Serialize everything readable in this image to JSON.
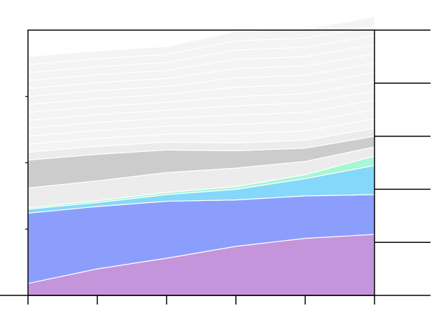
{
  "chart_data": {
    "type": "area",
    "stacked": true,
    "title": "",
    "xlabel": "",
    "ylabel": "",
    "x": [
      0,
      1,
      2,
      3,
      4,
      5
    ],
    "xlim": [
      0,
      5
    ],
    "ylim": [
      0,
      100
    ],
    "x_tick_labels": [
      "",
      "",
      "",
      "",
      "",
      ""
    ],
    "y_tick_labels": [],
    "grid": false,
    "series": [
      {
        "color": "#c495da",
        "values": [
          4.5,
          10,
          14,
          18.5,
          21.5,
          23
        ]
      },
      {
        "color": "#8c9efc",
        "values": [
          26.5,
          23.5,
          21.5,
          17.5,
          16,
          15
        ]
      },
      {
        "color": "#86d8fa",
        "values": [
          1.5,
          1.5,
          2.5,
          4,
          6.5,
          11
        ]
      },
      {
        "color": "#a6f7d3",
        "values": [
          0.5,
          0.7,
          0.8,
          1,
          1.5,
          3.5
        ]
      },
      {
        "color": "#ececec",
        "values": [
          7.5,
          7.5,
          7.5,
          7,
          5,
          3.5
        ]
      },
      {
        "color": "#cccccc",
        "values": [
          10.5,
          10,
          8.5,
          6.5,
          5,
          4
        ]
      },
      {
        "color": "#ececec",
        "values": [
          3,
          3,
          3,
          3,
          3,
          3
        ]
      },
      {
        "color": "#f4f4f4",
        "values": [
          3,
          3,
          3,
          3.5,
          3.5,
          3.5
        ]
      },
      {
        "color": "#f4f4f4",
        "values": [
          3,
          3,
          3,
          3.5,
          3.5,
          3.5
        ]
      },
      {
        "color": "#f4f4f4",
        "values": [
          3,
          3,
          3,
          3.5,
          3.5,
          3.5
        ]
      },
      {
        "color": "#f4f4f4",
        "values": [
          3,
          3,
          3,
          3.5,
          3.5,
          3.5
        ]
      },
      {
        "color": "#f4f4f4",
        "values": [
          3,
          3,
          3,
          3.5,
          3.5,
          3.5
        ]
      },
      {
        "color": "#f4f4f4",
        "values": [
          3,
          3,
          3,
          3.5,
          3.5,
          3.5
        ]
      },
      {
        "color": "#f4f4f4",
        "values": [
          3,
          3,
          3,
          3.5,
          3.5,
          3.5
        ]
      },
      {
        "color": "#f4f4f4",
        "values": [
          3,
          3,
          3,
          3.5,
          3.5,
          3.5
        ]
      },
      {
        "color": "#f4f4f4",
        "values": [
          3,
          3,
          3,
          3.5,
          3.5,
          3.5
        ]
      },
      {
        "color": "#f4f4f4",
        "values": [
          3,
          3,
          3,
          3.5,
          3.5,
          3.5
        ]
      },
      {
        "color": "#f4f4f4",
        "values": [
          3,
          3,
          3,
          3.5,
          3.5,
          3.5
        ]
      },
      {
        "color": "#f4f4f4",
        "values": [
          3,
          3,
          3,
          3.5,
          3.5,
          3.5
        ]
      }
    ]
  }
}
